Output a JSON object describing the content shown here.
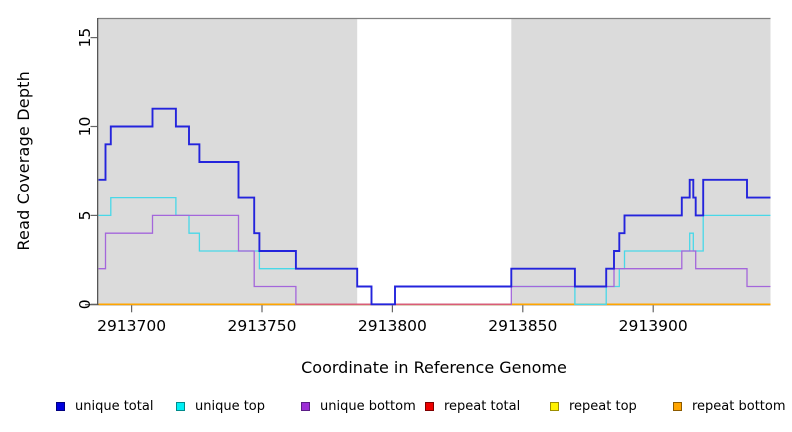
{
  "chart_data": {
    "type": "line",
    "subtype": "step",
    "title": "",
    "xlabel": "Coordinate in Reference Genome",
    "ylabel": "Read Coverage Depth",
    "xlim": [
      2913687.3,
      2913945
    ],
    "ylim": [
      0,
      16.1
    ],
    "xticks": [
      {
        "value": 2913700,
        "label": "2913700"
      },
      {
        "value": 2913750,
        "label": "2913750"
      },
      {
        "value": 2913800,
        "label": "2913800"
      },
      {
        "value": 2913850,
        "label": "2913850"
      },
      {
        "value": 2913900,
        "label": "2913900"
      }
    ],
    "yticks": [
      {
        "value": 0,
        "label": "0"
      },
      {
        "value": 5,
        "label": "5"
      },
      {
        "value": 10,
        "label": "10"
      },
      {
        "value": 15,
        "label": "15"
      }
    ],
    "grid": false,
    "legend_position": "bottom",
    "shade_color": "#dbdbdb",
    "shaded_regions": [
      [
        2913687.3,
        2913786.5
      ],
      [
        2913845.6,
        2913945.0
      ]
    ],
    "series": [
      {
        "name": "unique total",
        "color": "#2424DC",
        "legend_fill": "#0000DE",
        "legend_border": "#000080",
        "width": 1.9,
        "end": 2913945.0,
        "points": [
          [
            2913687.3,
            7
          ],
          [
            2913690,
            9
          ],
          [
            2913692,
            10
          ],
          [
            2913708,
            11
          ],
          [
            2913717,
            10
          ],
          [
            2913722,
            9
          ],
          [
            2913726,
            8
          ],
          [
            2913741,
            6
          ],
          [
            2913747,
            4
          ],
          [
            2913749,
            3
          ],
          [
            2913763,
            2
          ],
          [
            2913786.5,
            1
          ],
          [
            2913792,
            0
          ],
          [
            2913801,
            1
          ],
          [
            2913845.6,
            2
          ],
          [
            2913870,
            1
          ],
          [
            2913882,
            2
          ],
          [
            2913885,
            3
          ],
          [
            2913887,
            4
          ],
          [
            2913889,
            5
          ],
          [
            2913911,
            6
          ],
          [
            2913914,
            7
          ],
          [
            2913915.4,
            6
          ],
          [
            2913916.3,
            5
          ],
          [
            2913919.2,
            7
          ],
          [
            2913936,
            6
          ]
        ]
      },
      {
        "name": "unique top",
        "color": "#48D8E8",
        "legend_fill": "#00F0F5",
        "legend_border": "#008B8B",
        "width": 1.3,
        "end": 2913945.0,
        "points": [
          [
            2913687.3,
            5
          ],
          [
            2913692,
            6
          ],
          [
            2913717,
            5
          ],
          [
            2913722,
            4
          ],
          [
            2913726,
            3
          ],
          [
            2913749,
            2
          ],
          [
            2913786.5,
            1
          ],
          [
            2913792,
            0
          ],
          [
            2913801,
            1
          ],
          [
            2913870,
            0
          ],
          [
            2913882,
            1
          ],
          [
            2913887,
            2
          ],
          [
            2913889,
            3
          ],
          [
            2913914,
            4
          ],
          [
            2913915.4,
            3
          ],
          [
            2913919.2,
            5
          ]
        ]
      },
      {
        "name": "unique bottom",
        "color": "#A466DB",
        "legend_fill": "#9D2FD6",
        "legend_border": "#5B1E86",
        "width": 1.3,
        "end": 2913945.0,
        "points": [
          [
            2913687.3,
            2
          ],
          [
            2913690,
            4
          ],
          [
            2913708,
            5
          ],
          [
            2913741,
            3
          ],
          [
            2913747,
            1
          ],
          [
            2913763,
            0
          ],
          [
            2913845.6,
            1
          ],
          [
            2913885,
            2
          ],
          [
            2913911,
            3
          ],
          [
            2913916.3,
            2
          ],
          [
            2913936,
            1
          ]
        ]
      },
      {
        "name": "repeat total",
        "color": "#DB5C76",
        "legend_fill": "#EE0000",
        "legend_border": "#7E0000",
        "width": 1.3,
        "end": 2913845.6,
        "points": [
          [
            2913763,
            0
          ]
        ]
      },
      {
        "name": "repeat top",
        "color": "#FFEE00",
        "legend_fill": "#FFF200",
        "legend_border": "#9C8E00",
        "width": 1.3,
        "end": 2913945.0,
        "points": [
          [
            2913687.3,
            0
          ]
        ]
      },
      {
        "name": "repeat bottom",
        "color": "#FFA500",
        "legend_fill": "#FFA500",
        "legend_border": "#8B5A00",
        "width": 1.6,
        "end": 2913945.0,
        "points": [
          [
            2913687.3,
            0
          ]
        ]
      }
    ],
    "draw_order": [
      4,
      5,
      1,
      2,
      3,
      0
    ],
    "axis_color": "#444444",
    "tick_color": "#666666",
    "top_border_color": "#808080",
    "text_color": "#000000"
  }
}
